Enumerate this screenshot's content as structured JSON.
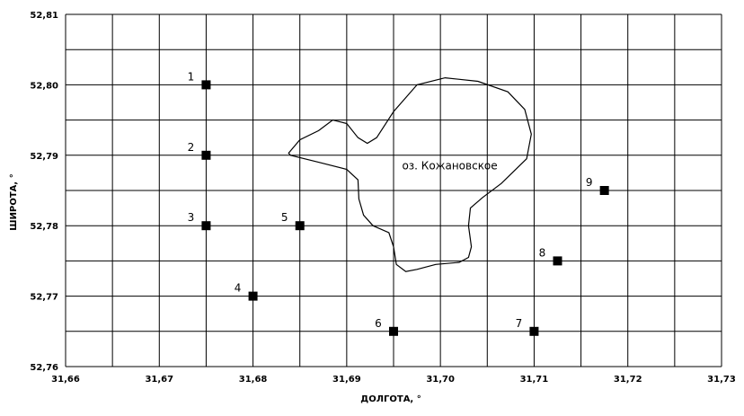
{
  "chart_data": {
    "type": "scatter",
    "xlabel": "ДОЛГОТА, °",
    "ylabel": "ШИРОТА, °",
    "xlim": [
      31.66,
      31.73
    ],
    "ylim": [
      52.76,
      52.81
    ],
    "grid": true,
    "x_ticks": [
      "31,66",
      "31,67",
      "31,68",
      "31,69",
      "31,70",
      "31,71",
      "31,72",
      "31,73"
    ],
    "y_ticks": [
      "52,76",
      "52,77",
      "52,78",
      "52,79",
      "52,80",
      "52,81"
    ],
    "points": [
      {
        "label": "1",
        "x": 31.675,
        "y": 52.8
      },
      {
        "label": "2",
        "x": 31.675,
        "y": 52.79
      },
      {
        "label": "3",
        "x": 31.675,
        "y": 52.78
      },
      {
        "label": "4",
        "x": 31.68,
        "y": 52.77
      },
      {
        "label": "5",
        "x": 31.685,
        "y": 52.78
      },
      {
        "label": "6",
        "x": 31.695,
        "y": 52.765
      },
      {
        "label": "7",
        "x": 31.71,
        "y": 52.765
      },
      {
        "label": "8",
        "x": 31.7125,
        "y": 52.775
      },
      {
        "label": "9",
        "x": 31.7175,
        "y": 52.785
      }
    ],
    "annotation": {
      "text": "оз. Кожановское",
      "x": 31.701,
      "y": 52.7885
    },
    "lake_outline": [
      [
        31.6838,
        52.7903
      ],
      [
        31.685,
        52.7922
      ],
      [
        31.687,
        52.7935
      ],
      [
        31.6885,
        52.795
      ],
      [
        31.69,
        52.7945
      ],
      [
        31.6912,
        52.7925
      ],
      [
        31.6922,
        52.7917
      ],
      [
        31.6932,
        52.7925
      ],
      [
        31.695,
        52.7962
      ],
      [
        31.6975,
        52.8
      ],
      [
        31.7005,
        52.801
      ],
      [
        31.704,
        52.8005
      ],
      [
        31.7072,
        52.799
      ],
      [
        31.709,
        52.7965
      ],
      [
        31.7097,
        52.793
      ],
      [
        31.7092,
        52.7895
      ],
      [
        31.7065,
        52.786
      ],
      [
        31.7045,
        52.784
      ],
      [
        31.7032,
        52.7825
      ],
      [
        31.703,
        52.78
      ],
      [
        31.7033,
        52.777
      ],
      [
        31.703,
        52.7755
      ],
      [
        31.702,
        52.7748
      ],
      [
        31.6995,
        52.7745
      ],
      [
        31.6975,
        52.7738
      ],
      [
        31.6963,
        52.7735
      ],
      [
        31.6953,
        52.7745
      ],
      [
        31.695,
        52.777
      ],
      [
        31.6945,
        52.779
      ],
      [
        31.6928,
        52.78
      ],
      [
        31.6918,
        52.7815
      ],
      [
        31.6913,
        52.7838
      ],
      [
        31.6912,
        52.7865
      ],
      [
        31.69,
        52.788
      ],
      [
        31.687,
        52.789
      ],
      [
        31.684,
        52.79
      ]
    ],
    "colors": {
      "marker": "#000000",
      "grid": "#000000",
      "background": "#ffffff"
    }
  }
}
